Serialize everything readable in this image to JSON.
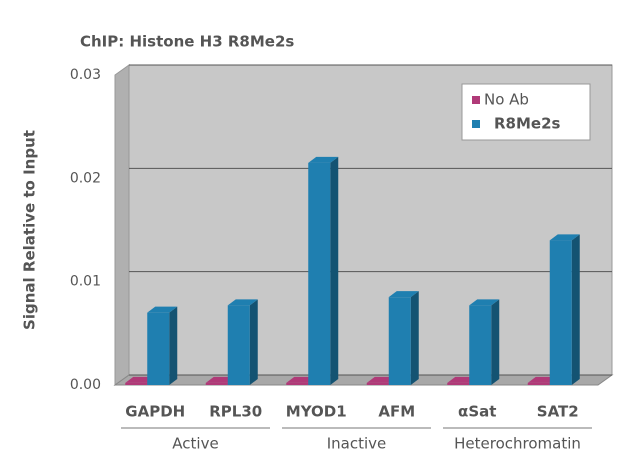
{
  "chart_data": {
    "type": "bar3d",
    "title": "ChIP: Histone H3 R8Me2s",
    "y_label": "Signal Relative to Input",
    "categories": [
      "GAPDH",
      "RPL30",
      "MYOD1",
      "AFM",
      "αSat",
      "SAT2"
    ],
    "groups": [
      "Active",
      "Inactive",
      "Heterochromatin"
    ],
    "series": [
      {
        "name": "No Ab",
        "color": "#b03a78",
        "values": [
          0.0002,
          0.0002,
          0.0002,
          0.0002,
          0.0002,
          0.0002
        ]
      },
      {
        "name": "R8Me2s",
        "color": "#1f7fb0",
        "values": [
          0.007,
          0.0077,
          0.0215,
          0.0085,
          0.0077,
          0.014
        ]
      }
    ],
    "ylim": [
      0,
      0.03
    ],
    "yticks": [
      {
        "value": 0,
        "label": "0.00"
      },
      0.01,
      0.02,
      0.03
    ],
    "grid": true,
    "legend": "top-right"
  }
}
